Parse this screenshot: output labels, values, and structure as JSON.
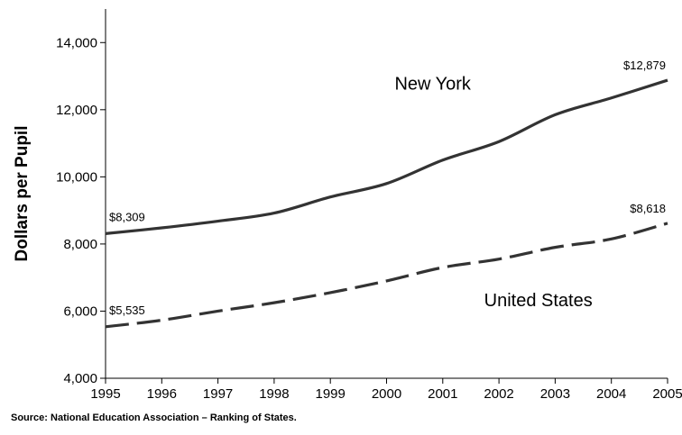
{
  "chart_data": {
    "type": "line",
    "ylabel": "Dollars per Pupil",
    "xlabel": "",
    "ylim": [
      4000,
      15000
    ],
    "yticks": [
      4000,
      6000,
      8000,
      10000,
      12000,
      14000
    ],
    "ytick_labels": [
      "4,000",
      "6,000",
      "8,000",
      "10,000",
      "12,000",
      "14,000"
    ],
    "xlim": [
      1995,
      2005
    ],
    "xticks": [
      1995,
      1996,
      1997,
      1998,
      1999,
      2000,
      2001,
      2002,
      2003,
      2004,
      2005
    ],
    "xtick_labels": [
      "1995",
      "1996",
      "1997",
      "1998",
      "1999",
      "2000",
      "2001",
      "2002",
      "2003",
      "2004",
      "2005"
    ],
    "grid": false,
    "legend": "none",
    "series": [
      {
        "name": "New York",
        "style": "solid",
        "color": "#333333",
        "x": [
          1995,
          1996,
          1997,
          1998,
          1999,
          2000,
          2001,
          2002,
          2003,
          2004,
          2005
        ],
        "values": [
          8309,
          8480,
          8680,
          8920,
          9400,
          9800,
          10500,
          11050,
          11850,
          12350,
          12879
        ]
      },
      {
        "name": "United States",
        "style": "dashed",
        "color": "#333333",
        "x": [
          1995,
          1996,
          1997,
          1998,
          1999,
          2000,
          2001,
          2002,
          2003,
          2004,
          2005
        ],
        "values": [
          5535,
          5730,
          6000,
          6250,
          6550,
          6900,
          7300,
          7550,
          7900,
          8150,
          8618
        ]
      }
    ],
    "annotations": [
      {
        "text": "$8,309",
        "series": 0,
        "point": "start"
      },
      {
        "text": "$12,879",
        "series": 0,
        "point": "end"
      },
      {
        "text": "$5,535",
        "series": 1,
        "point": "start"
      },
      {
        "text": "$8,618",
        "series": 1,
        "point": "end"
      }
    ]
  },
  "source_note": "Source: National Education Association – Ranking of States."
}
